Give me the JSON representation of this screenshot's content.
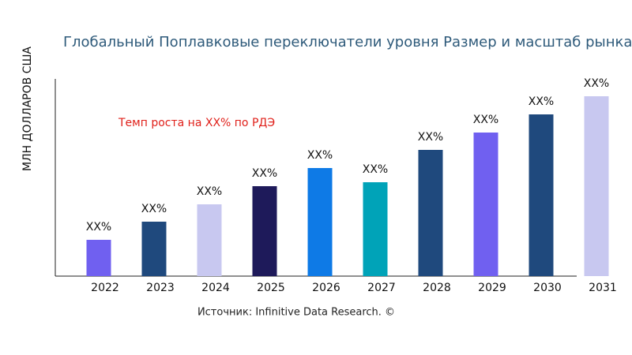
{
  "chart_data": {
    "type": "bar",
    "title": "Глобальный Поплавковые переключатели уровня Размер и масштаб рынка",
    "y_label": "МЛН ДОЛЛАРОВ США",
    "annotation": "Темп роста на XX% по РДЭ",
    "source": "Источник: Infinitive Data Research. ©",
    "categories": [
      "2022",
      "2023",
      "2024",
      "2025",
      "2026",
      "2027",
      "2028",
      "2029",
      "2030",
      "2031"
    ],
    "values": [
      46,
      69,
      91,
      114,
      137,
      119,
      160,
      182,
      205,
      228
    ],
    "value_labels": [
      "XX%",
      "XX%",
      "XX%",
      "XX%",
      "XX%",
      "XX%",
      "XX%",
      "XX%",
      "XX%",
      "XX%"
    ],
    "colors": [
      "#7060f0",
      "#1f497d",
      "#c8c8f0",
      "#1e1a5a",
      "#0e7ae6",
      "#00a3b8",
      "#1f497d",
      "#7060f0",
      "#1f497d",
      "#c8c8f0"
    ],
    "ylim": [
      0,
      250
    ]
  }
}
